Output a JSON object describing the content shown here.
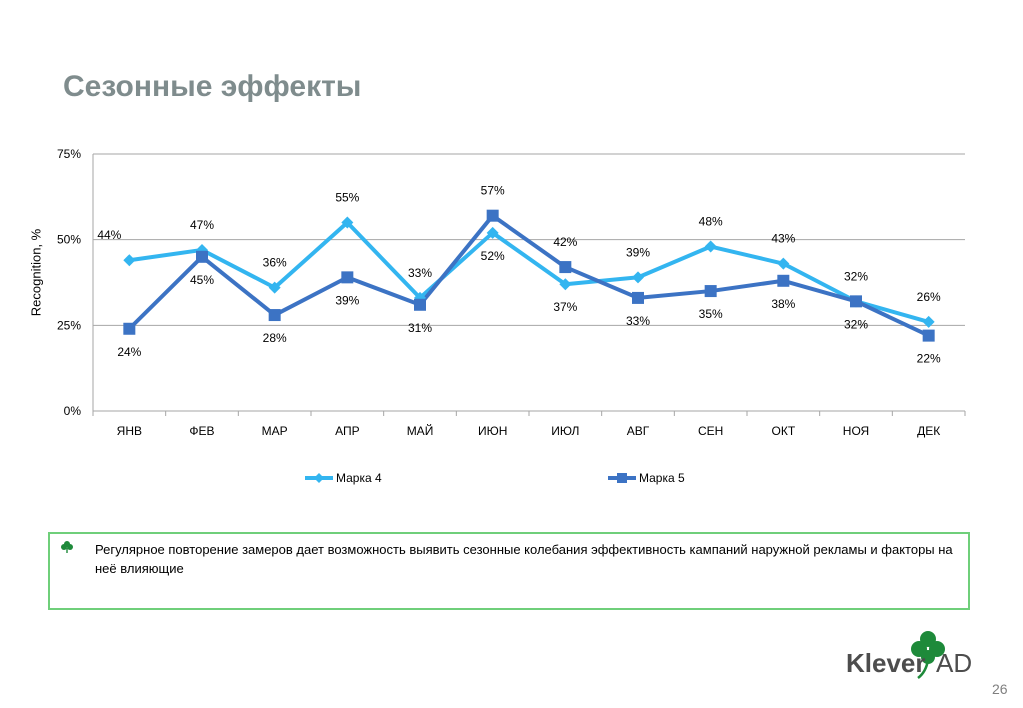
{
  "slide": {
    "title": "Сезонные эффекты",
    "note": "Регулярное повторение замеров дает возможность выявить сезонные колебания эффективность кампаний наружной рекламы и факторы на неё влияющие",
    "bullet_icon": "clover-icon",
    "logo_text": "Klever",
    "logo_text_ad": "AD",
    "page_number": "26"
  },
  "colors": {
    "series1": "#33b5f0",
    "series2": "#3c73c4",
    "grid": "#a6a6a6",
    "note_border": "#6fcf7a",
    "logo_green": "#1e8a3a"
  },
  "chart_data": {
    "type": "line",
    "ylabel": "Recognition, %",
    "ylim": [
      0,
      75
    ],
    "yticks": [
      "0%",
      "25%",
      "50%",
      "75%"
    ],
    "categories": [
      "ЯНВ",
      "ФЕВ",
      "МАР",
      "АПР",
      "МАЙ",
      "ИЮН",
      "ИЮЛ",
      "АВГ",
      "СЕН",
      "ОКТ",
      "НОЯ",
      "ДЕК"
    ],
    "legend_position": "bottom",
    "series": [
      {
        "name": "Марка 4",
        "marker": "diamond",
        "values": [
          44,
          47,
          36,
          55,
          33,
          52,
          37,
          39,
          48,
          43,
          32,
          26
        ],
        "labels": [
          "44%",
          "47%",
          "36%",
          "55%",
          "33%",
          "52%",
          "37%",
          "39%",
          "48%",
          "43%",
          "32%",
          "26%"
        ]
      },
      {
        "name": "Марка 5",
        "marker": "square",
        "values": [
          24,
          45,
          28,
          39,
          31,
          57,
          42,
          33,
          35,
          38,
          32,
          22
        ],
        "labels": [
          "24%",
          "45%",
          "28%",
          "39%",
          "31%",
          "57%",
          "42%",
          "33%",
          "35%",
          "38%",
          "32%",
          "22%"
        ]
      }
    ]
  }
}
